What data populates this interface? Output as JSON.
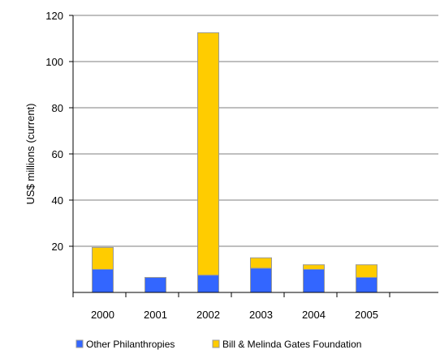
{
  "chart_data": {
    "type": "bar",
    "stacked": true,
    "categories": [
      "2000",
      "2001",
      "2002",
      "2003",
      "2004",
      "2005"
    ],
    "series": [
      {
        "name": "Other Philanthropies",
        "values": [
          10,
          6.5,
          7.5,
          10.5,
          10,
          6.5
        ]
      },
      {
        "name": "Bill & Melinda Gates Foundation",
        "values": [
          9.5,
          0,
          105,
          4.5,
          2,
          5.5
        ]
      }
    ],
    "ylabel": "US$ millions (current)",
    "ylim": [
      0,
      120
    ],
    "yticks": [
      20,
      40,
      60,
      80,
      100,
      120
    ],
    "ytick_labels": [
      "20",
      "40",
      "60",
      "80",
      "100",
      "120"
    ],
    "grid": true,
    "legend_position": "bottom",
    "colors": {
      "series": [
        "#3366ff",
        "#ffcc00"
      ],
      "grid": "#7f7f7f",
      "axis": "#000000",
      "bar_edge": "#999999"
    }
  }
}
